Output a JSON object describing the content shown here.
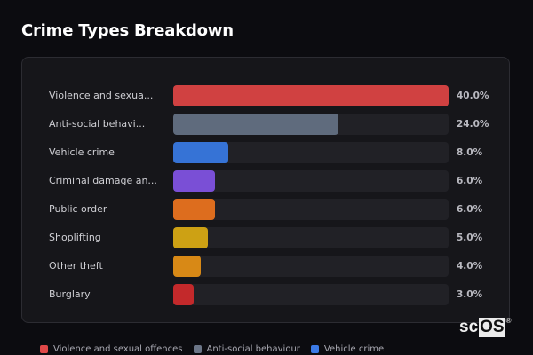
{
  "header": {
    "title": "Crime Types Breakdown"
  },
  "chart_data": {
    "type": "bar",
    "orientation": "horizontal",
    "title": "Crime Types Breakdown",
    "xlabel": "",
    "ylabel": "",
    "grid": false,
    "legend_position": "bottom",
    "categories": [
      "Violence and sexual offences",
      "Anti-social behaviour",
      "Vehicle crime",
      "Criminal damage and arson",
      "Public order",
      "Shoplifting",
      "Other theft",
      "Burglary"
    ],
    "display_labels": [
      "Violence and sexua...",
      "Anti-social behavi...",
      "Vehicle crime",
      "Criminal damage an...",
      "Public order",
      "Shoplifting",
      "Other theft",
      "Burglary"
    ],
    "values": [
      40.0,
      24.0,
      8.0,
      6.0,
      6.0,
      5.0,
      4.0,
      3.0
    ],
    "value_labels": [
      "40.0%",
      "24.0%",
      "8.0%",
      "6.0%",
      "6.0%",
      "5.0%",
      "4.0%",
      "3.0%"
    ],
    "colors": [
      "#d04141",
      "#5f6b7d",
      "#3673d6",
      "#7a4fd6",
      "#dd6d1e",
      "#cda114",
      "#d88916",
      "#c3292b"
    ],
    "scale_max": 40.0
  },
  "legend": {
    "items": [
      {
        "label": "Violence and sexual offences",
        "color": "#e04848"
      },
      {
        "label": "Anti-social behaviour",
        "color": "#6b7587"
      },
      {
        "label": "Vehicle crime",
        "color": "#3b7ae6"
      }
    ]
  },
  "watermark": {
    "prefix": "sc",
    "boxed": "OS",
    "reg": "®"
  }
}
